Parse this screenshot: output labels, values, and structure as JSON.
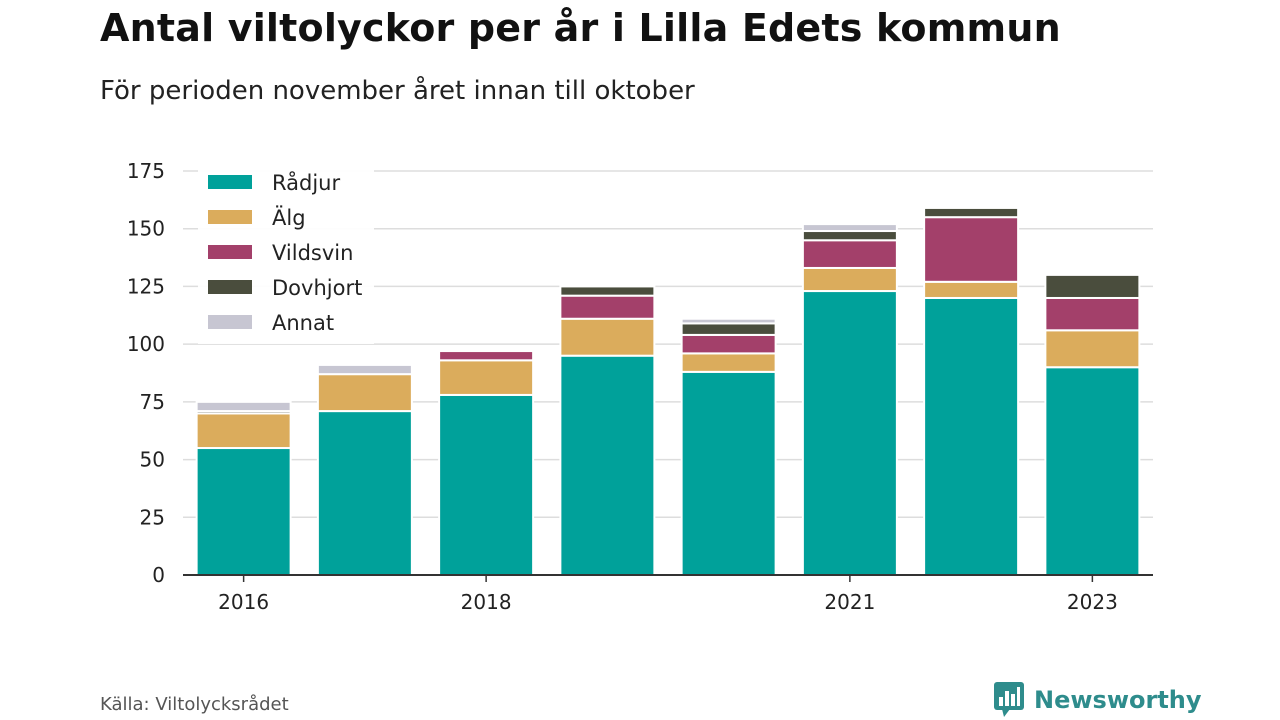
{
  "title": "Antal viltolyckor per år i Lilla Edets kommun",
  "subtitle": "För perioden november året innan till oktober",
  "source": "Källa: Viltolycksrådet",
  "brand": {
    "name": "Newsworthy",
    "icon": "bar-chart-speech-bubble-icon",
    "color": "#2e8c8c"
  },
  "chart_data": {
    "type": "bar",
    "stacked": true,
    "categories": [
      "2016",
      "2017",
      "2018",
      "2019",
      "2020",
      "2021",
      "2022",
      "2023"
    ],
    "x_tick_labels": [
      "2016",
      "",
      "2018",
      "",
      "",
      "2021",
      "",
      "2023"
    ],
    "ylim": [
      0,
      175
    ],
    "yticks": [
      0,
      25,
      50,
      75,
      100,
      125,
      150,
      175
    ],
    "grid": true,
    "legend_position": "top-left",
    "series": [
      {
        "name": "Rådjur",
        "color": "#00a19a",
        "values": [
          55,
          71,
          78,
          95,
          88,
          123,
          120,
          90
        ]
      },
      {
        "name": "Älg",
        "color": "#dbac5c",
        "values": [
          15,
          16,
          15,
          16,
          8,
          10,
          7,
          16
        ]
      },
      {
        "name": "Vildsvin",
        "color": "#a3406a",
        "values": [
          0,
          0,
          4,
          10,
          8,
          12,
          28,
          14
        ]
      },
      {
        "name": "Dovhjort",
        "color": "#4a4d3d",
        "values": [
          1,
          0,
          0,
          4,
          5,
          4,
          4,
          10
        ]
      },
      {
        "name": "Annat",
        "color": "#c7c6d2",
        "values": [
          4,
          4,
          0,
          0,
          2,
          3,
          0,
          0
        ]
      }
    ]
  }
}
